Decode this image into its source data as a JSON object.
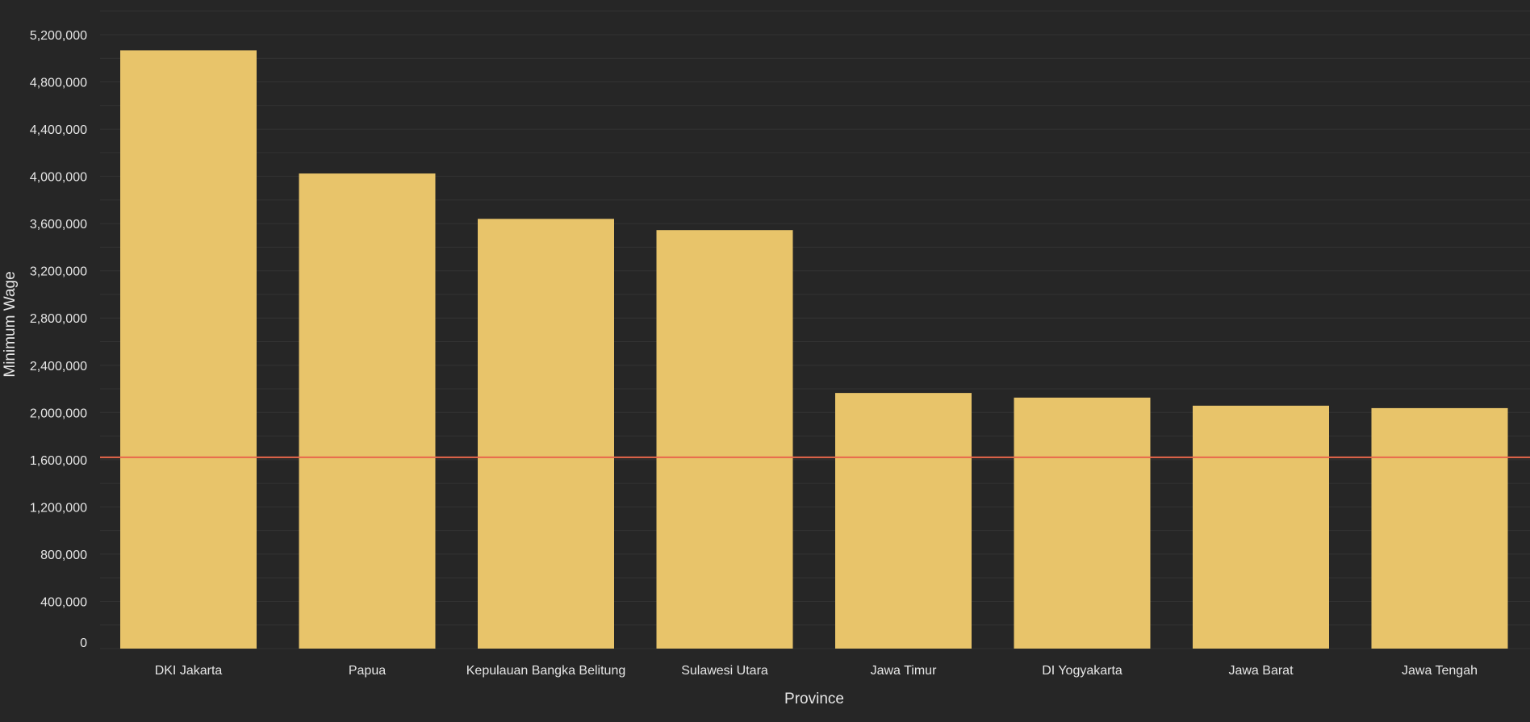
{
  "colors": {
    "background": "#262626",
    "bar": "#E8C46A",
    "reference_line": "#E8674B",
    "grid": "#333333",
    "text": "#E6E6E6"
  },
  "chart_data": {
    "type": "bar",
    "categories": [
      "DKI Jakarta",
      "Papua",
      "Kepulauan Bangka Belitung",
      "Sulawesi Utara",
      "Jawa Timur",
      "DI Yogyakarta",
      "Jawa Barat",
      "Jawa Tengah"
    ],
    "values": [
      5067381,
      4024270,
      3640000,
      3545000,
      2165244,
      2125898,
      2057495,
      2036947
    ],
    "xlabel": "Province",
    "ylabel": "Minimum Wage",
    "ylim": [
      0,
      5200000
    ],
    "yticks": [
      0,
      400000,
      800000,
      1200000,
      1600000,
      2000000,
      2400000,
      2800000,
      3200000,
      3600000,
      4000000,
      4400000,
      4800000,
      5200000
    ],
    "ytick_labels": [
      "0",
      "400,000",
      "800,000",
      "1,200,000",
      "1,600,000",
      "2,000,000",
      "2,400,000",
      "2,800,000",
      "3,200,000",
      "3,600,000",
      "4,000,000",
      "4,400,000",
      "4,800,000",
      "5,200,000"
    ],
    "reference_line": 1620000,
    "grid": true
  }
}
